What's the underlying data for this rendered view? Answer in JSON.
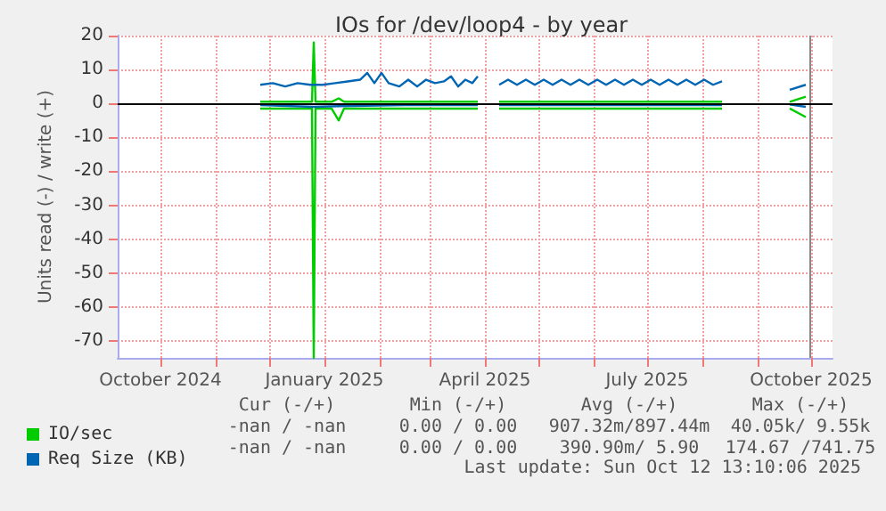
{
  "chart_data": {
    "type": "line",
    "title": "IOs for /dev/loop4 - by year",
    "ylabel": "Units read (-) / write (+)",
    "xlim": [
      "2024-09-07",
      "2025-10-13"
    ],
    "xticks": [
      {
        "value": "2024-10-01",
        "label": "October 2024"
      },
      {
        "value": "2024-11-01",
        "label": null
      },
      {
        "value": "2024-12-01",
        "label": null
      },
      {
        "value": "2025-01-01",
        "label": "January 2025"
      },
      {
        "value": "2025-02-01",
        "label": null
      },
      {
        "value": "2025-03-01",
        "label": null
      },
      {
        "value": "2025-04-01",
        "label": "April 2025"
      },
      {
        "value": "2025-05-01",
        "label": null
      },
      {
        "value": "2025-06-01",
        "label": null
      },
      {
        "value": "2025-07-01",
        "label": "July 2025"
      },
      {
        "value": "2025-08-01",
        "label": null
      },
      {
        "value": "2025-09-01",
        "label": null
      },
      {
        "value": "2025-10-01",
        "label": "October 2025"
      }
    ],
    "ylim": [
      -75,
      20
    ],
    "yticks": [
      -70,
      -60,
      -50,
      -40,
      -30,
      -20,
      -10,
      0,
      10,
      20
    ],
    "grid": true,
    "legend": "bottom left",
    "marker": "none",
    "line_style": "solid",
    "series": [
      {
        "name": "IO/sec",
        "color": "#00cc00",
        "x": [
          "2024-11-26",
          "2024-12-20",
          "2024-12-25",
          "2024-12-26",
          "2024-12-27",
          "2025-01-05",
          "2025-01-09",
          "2025-01-12",
          "2025-02-15",
          "2025-03-28",
          "2025-04-03",
          "2025-04-09",
          "2025-06-01",
          "2025-08-12",
          "2025-09-01",
          "2025-09-19",
          "2025-09-28"
        ],
        "values": [
          0.5,
          0.5,
          0.5,
          18,
          0.5,
          0.5,
          1.5,
          0.5,
          0.5,
          0.5,
          null,
          0.5,
          0.5,
          0.5,
          null,
          0.5,
          2
        ]
      },
      {
        "color": "#00cc00",
        "x": [
          "2024-11-26",
          "2024-12-20",
          "2024-12-25",
          "2024-12-26",
          "2024-12-27",
          "2025-01-05",
          "2025-01-09",
          "2025-01-12",
          "2025-02-15",
          "2025-03-28",
          "2025-04-03",
          "2025-04-09",
          "2025-06-01",
          "2025-08-12",
          "2025-09-01",
          "2025-09-19",
          "2025-09-28"
        ],
        "values": [
          -1.5,
          -1.5,
          -1.5,
          -75,
          -1.5,
          -1.5,
          -5,
          -1.5,
          -1.5,
          -1.5,
          null,
          -1.5,
          -1.5,
          -1.5,
          null,
          -1.5,
          -4
        ]
      },
      {
        "name": "Req Size (KB)",
        "color": "#0066b3",
        "x": [
          "2024-11-26",
          "2024-12-03",
          "2024-12-10",
          "2024-12-17",
          "2024-12-24",
          "2024-12-31",
          "2025-01-07",
          "2025-01-14",
          "2025-01-21",
          "2025-01-25",
          "2025-01-29",
          "2025-02-02",
          "2025-02-06",
          "2025-02-12",
          "2025-02-17",
          "2025-02-22",
          "2025-02-27",
          "2025-03-04",
          "2025-03-09",
          "2025-03-13",
          "2025-03-17",
          "2025-03-21",
          "2025-03-25",
          "2025-03-28",
          "2025-04-03",
          "2025-04-09",
          "2025-04-14",
          "2025-04-19",
          "2025-04-24",
          "2025-04-29",
          "2025-05-04",
          "2025-05-09",
          "2025-05-14",
          "2025-05-19",
          "2025-05-24",
          "2025-05-29",
          "2025-06-03",
          "2025-06-08",
          "2025-06-13",
          "2025-06-18",
          "2025-06-23",
          "2025-06-28",
          "2025-07-03",
          "2025-07-08",
          "2025-07-13",
          "2025-07-18",
          "2025-07-23",
          "2025-07-28",
          "2025-08-02",
          "2025-08-07",
          "2025-08-12",
          "2025-09-01",
          "2025-09-19",
          "2025-09-28"
        ],
        "values": [
          5.5,
          6,
          5,
          6,
          5.5,
          5.5,
          6,
          6.5,
          7,
          9,
          6,
          9,
          6,
          5,
          7,
          5,
          7,
          6,
          6.5,
          8,
          5,
          7,
          6,
          8,
          null,
          5.5,
          7,
          5.5,
          7,
          5.5,
          7,
          5.5,
          7,
          5.5,
          7,
          5.5,
          7,
          5.5,
          7,
          5.5,
          7,
          5.5,
          7,
          5.5,
          7,
          5.5,
          7,
          5.5,
          7,
          5.5,
          6.5,
          null,
          4,
          5.5
        ]
      },
      {
        "color": "#0066b3",
        "x": [
          "2024-11-26",
          "2024-12-26",
          "2025-01-09",
          "2025-02-15",
          "2025-03-28",
          "2025-04-03",
          "2025-04-09",
          "2025-06-01",
          "2025-08-12",
          "2025-09-01",
          "2025-09-19",
          "2025-09-28"
        ],
        "values": [
          -0.5,
          -1,
          -0.8,
          -0.5,
          -0.5,
          null,
          -0.5,
          -0.5,
          -0.5,
          null,
          -0.3,
          -1
        ]
      }
    ],
    "ref_lines": [
      {
        "axis": "x",
        "value": "2025-09-30",
        "label": null,
        "color": "#888888"
      },
      {
        "axis": "y",
        "value": 0,
        "label": null,
        "color": "#000000"
      }
    ],
    "annotations": [
      "Cur (-/+)",
      "Min (-/+)",
      "Avg (-/+)",
      "Max (-/+)",
      "-nan / -nan",
      "0.00 / 0.00",
      "907.32m/897.44m",
      "40.05k/ 9.55k",
      "-nan / -nan",
      "0.00 / 0.00",
      "390.90m/ 5.90",
      "174.67 /741.75",
      "Last update: Sun Oct 12 13:10:06 2025"
    ]
  }
}
